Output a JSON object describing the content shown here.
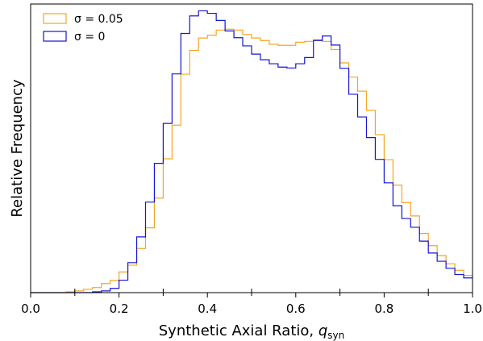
{
  "chart_data": {
    "type": "histogram-step",
    "xlabel": "Synthetic Axial Ratio, ",
    "xlabel_symbol": "q",
    "xlabel_subscript": "syn",
    "ylabel": "Relative Frequency",
    "xlim": [
      0.0,
      1.0
    ],
    "ylim": [
      0,
      1.0
    ],
    "x_ticks": [
      0.0,
      0.2,
      0.4,
      0.6,
      0.8,
      1.0
    ],
    "x_tick_labels": [
      "0.0",
      "0.2",
      "0.4",
      "0.6",
      "0.8",
      "1.0"
    ],
    "y_ticks_visible": false,
    "legend_position": "top-left",
    "bin_edges": [
      0.0,
      0.02,
      0.04,
      0.06,
      0.08,
      0.1,
      0.12,
      0.14,
      0.16,
      0.18,
      0.2,
      0.22,
      0.24,
      0.26,
      0.28,
      0.3,
      0.32,
      0.34,
      0.36,
      0.38,
      0.4,
      0.42,
      0.44,
      0.46,
      0.48,
      0.5,
      0.52,
      0.54,
      0.56,
      0.58,
      0.6,
      0.62,
      0.64,
      0.66,
      0.68,
      0.7,
      0.72,
      0.74,
      0.76,
      0.78,
      0.8,
      0.82,
      0.84,
      0.86,
      0.88,
      0.9,
      0.92,
      0.94,
      0.96,
      0.98,
      1.0
    ],
    "series": [
      {
        "name": "σ = 0.05",
        "color": "#f5a623",
        "values": [
          0,
          0,
          0,
          0,
          0.003,
          0.006,
          0.012,
          0.018,
          0.032,
          0.043,
          0.073,
          0.097,
          0.156,
          0.229,
          0.334,
          0.473,
          0.592,
          0.772,
          0.856,
          0.9,
          0.91,
          0.928,
          0.931,
          0.928,
          0.912,
          0.9,
          0.891,
          0.878,
          0.874,
          0.874,
          0.885,
          0.888,
          0.894,
          0.888,
          0.859,
          0.812,
          0.762,
          0.712,
          0.644,
          0.558,
          0.47,
          0.38,
          0.318,
          0.271,
          0.209,
          0.166,
          0.131,
          0.102,
          0.079,
          0.061
        ]
      },
      {
        "name": "σ = 0",
        "color": "#1515d4",
        "values": [
          0,
          0,
          0,
          0,
          0,
          0,
          0,
          0.003,
          0.006,
          0.015,
          0.044,
          0.106,
          0.197,
          0.32,
          0.457,
          0.598,
          0.773,
          0.916,
          0.978,
          0.996,
          0.987,
          0.962,
          0.925,
          0.901,
          0.872,
          0.843,
          0.823,
          0.809,
          0.797,
          0.794,
          0.809,
          0.831,
          0.891,
          0.907,
          0.875,
          0.793,
          0.701,
          0.621,
          0.548,
          0.471,
          0.388,
          0.307,
          0.262,
          0.231,
          0.182,
          0.14,
          0.111,
          0.086,
          0.064,
          0.052
        ]
      }
    ]
  }
}
